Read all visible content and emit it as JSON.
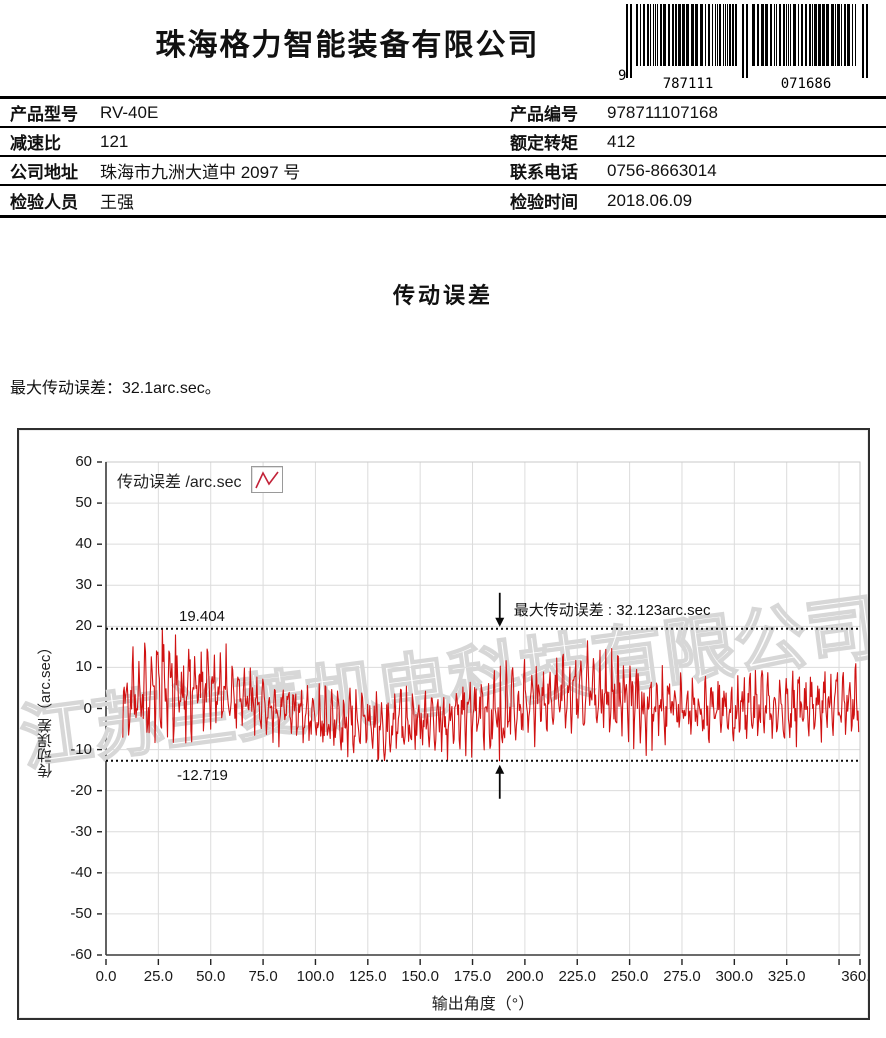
{
  "header": {
    "company": "珠海格力智能装备有限公司",
    "barcode": {
      "lead_digit": "9",
      "group1": "787111",
      "group2": "071686"
    }
  },
  "info_table": {
    "rows": [
      {
        "l_label": "产品型号",
        "l_value": "RV-40E",
        "r_label": "产品编号",
        "r_value": "978711107168"
      },
      {
        "l_label": "减速比",
        "l_value": "121",
        "r_label": "额定转矩",
        "r_value": "412"
      },
      {
        "l_label": "公司地址",
        "l_value": "珠海市九洲大道中 2097 号",
        "r_label": "联系电话",
        "r_value": "0756-8663014"
      },
      {
        "l_label": "检验人员",
        "l_value": "王强",
        "r_label": "检验时间",
        "r_value": "2018.06.09"
      }
    ]
  },
  "section": {
    "title": "传动误差",
    "max_error_note": "最大传动误差：32.1arc.sec。"
  },
  "watermark_text": "江苏兰菱机电科技有限公司",
  "chart_data": {
    "type": "line",
    "title": "传动误差",
    "legend_label": "传动误差 /arc.sec",
    "legend_position": "top-left-inside",
    "xlabel": "输出角度（°）",
    "ylabel": "传动误差（arc.sec）",
    "xlim": [
      0,
      360
    ],
    "ylim": [
      -60,
      60
    ],
    "grid": true,
    "grid_color": "#dcdcdc",
    "line_color": "#d01212",
    "x_ticks": [
      {
        "v": 0,
        "label": "0.0"
      },
      {
        "v": 25,
        "label": "25.0"
      },
      {
        "v": 50,
        "label": "50.0"
      },
      {
        "v": 75,
        "label": "75.0"
      },
      {
        "v": 100,
        "label": "100.0"
      },
      {
        "v": 125,
        "label": "125.0"
      },
      {
        "v": 150,
        "label": "150.0"
      },
      {
        "v": 175,
        "label": "175.0"
      },
      {
        "v": 200,
        "label": "200.0"
      },
      {
        "v": 225,
        "label": "225.0"
      },
      {
        "v": 250,
        "label": "250.0"
      },
      {
        "v": 275,
        "label": "275.0"
      },
      {
        "v": 300,
        "label": "300.0"
      },
      {
        "v": 325,
        "label": "325.0"
      },
      {
        "v": 350,
        "label": ""
      },
      {
        "v": 360,
        "label": "360.0"
      }
    ],
    "y_ticks": [
      {
        "v": 60,
        "label": "60"
      },
      {
        "v": 50,
        "label": "50"
      },
      {
        "v": 40,
        "label": "40"
      },
      {
        "v": 30,
        "label": "30"
      },
      {
        "v": 20,
        "label": "20"
      },
      {
        "v": 10,
        "label": "10"
      },
      {
        "v": 0,
        "label": "0"
      },
      {
        "v": -10,
        "label": "-10"
      },
      {
        "v": -20,
        "label": "-20"
      },
      {
        "v": -30,
        "label": "-30"
      },
      {
        "v": -40,
        "label": "-40"
      },
      {
        "v": -50,
        "label": "-50"
      },
      {
        "v": -60,
        "label": "-60"
      }
    ],
    "thresholds": {
      "upper": {
        "value": 19.404,
        "label": "19.404"
      },
      "lower": {
        "value": -12.719,
        "label": "-12.719"
      }
    },
    "annotation": {
      "text": "最大传动误差 : 32.123arc.sec",
      "arrow_x": 188
    },
    "series": [
      {
        "name": "传动误差",
        "x_start": 8,
        "x_end": 359.6,
        "step": 0.35,
        "period_deg": 2.9752,
        "seed": 121,
        "envelope": {
          "x": [
            8,
            25,
            45,
            60,
            75,
            90,
            105,
            120,
            140,
            155,
            170,
            185,
            200,
            215,
            230,
            245,
            260,
            275,
            290,
            305,
            320,
            335,
            350,
            360
          ],
          "mean": [
            3,
            4.5,
            5,
            4,
            0.5,
            -1,
            -3,
            -3.5,
            -4,
            -2.5,
            -2,
            -1,
            1,
            3,
            4,
            2,
            0.5,
            0,
            -0.5,
            0,
            0.5,
            0.5,
            1,
            1.5
          ],
          "amplitude": [
            9,
            13,
            13,
            10,
            7.5,
            7,
            8.5,
            9,
            9,
            8.5,
            9,
            11,
            10.5,
            9.5,
            10,
            11,
            10.5,
            9.5,
            9,
            9,
            8.5,
            8.5,
            9,
            10
          ]
        },
        "max_point": {
          "x": 27,
          "y": 19.404
        },
        "min_point": {
          "x": 188,
          "y": -12.719
        }
      }
    ]
  }
}
